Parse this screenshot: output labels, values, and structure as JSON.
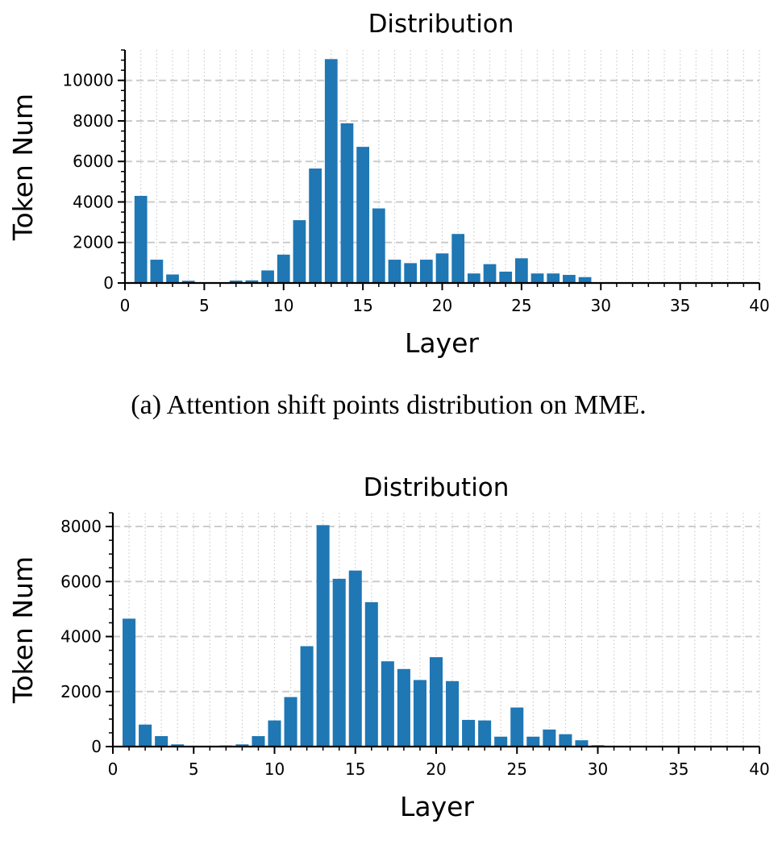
{
  "charts": [
    {
      "title": "Distribution",
      "caption": "(a) Attention shift points distribution on MME."
    },
    {
      "title": "Distribution",
      "caption": ""
    }
  ],
  "chart_data": [
    {
      "type": "bar",
      "title": "Distribution",
      "xlabel": "Layer",
      "ylabel": "Token Num",
      "bar_color": "#1f77b4",
      "grid": true,
      "xlim": [
        0,
        40
      ],
      "ylim": [
        0,
        11500
      ],
      "xticks": [
        0,
        5,
        10,
        15,
        20,
        25,
        30,
        35,
        40
      ],
      "yticks": [
        0,
        2000,
        4000,
        6000,
        8000,
        10000
      ],
      "x": [
        1,
        2,
        3,
        4,
        5,
        6,
        7,
        8,
        9,
        10,
        11,
        12,
        13,
        14,
        15,
        16,
        17,
        18,
        19,
        20,
        21,
        22,
        23,
        24,
        25,
        26,
        27,
        28,
        29,
        30,
        31,
        32,
        33,
        34,
        35,
        36,
        37,
        38,
        39
      ],
      "values": [
        4300,
        1150,
        420,
        110,
        20,
        10,
        120,
        130,
        620,
        1400,
        3100,
        5650,
        11050,
        7880,
        6720,
        3680,
        1150,
        980,
        1150,
        1460,
        2420,
        470,
        930,
        560,
        1220,
        470,
        470,
        400,
        290,
        0,
        0,
        0,
        0,
        0,
        0,
        0,
        0,
        0,
        0
      ]
    },
    {
      "type": "bar",
      "title": "Distribution",
      "xlabel": "Layer",
      "ylabel": "Token Num",
      "bar_color": "#1f77b4",
      "grid": true,
      "xlim": [
        0,
        40
      ],
      "ylim": [
        0,
        8500
      ],
      "xticks": [
        0,
        5,
        10,
        15,
        20,
        25,
        30,
        35,
        40
      ],
      "yticks": [
        0,
        2000,
        4000,
        6000,
        8000
      ],
      "x": [
        1,
        2,
        3,
        4,
        5,
        6,
        7,
        8,
        9,
        10,
        11,
        12,
        13,
        14,
        15,
        16,
        17,
        18,
        19,
        20,
        21,
        22,
        23,
        24,
        25,
        26,
        27,
        28,
        29,
        30,
        31,
        32,
        33,
        34,
        35,
        36,
        37,
        38,
        39
      ],
      "values": [
        4650,
        800,
        380,
        80,
        15,
        10,
        40,
        80,
        380,
        950,
        1800,
        3650,
        8050,
        6100,
        6400,
        5250,
        3100,
        2820,
        2420,
        3250,
        2380,
        970,
        950,
        360,
        1420,
        360,
        620,
        450,
        230,
        50,
        0,
        0,
        0,
        0,
        0,
        0,
        0,
        0,
        0
      ]
    }
  ]
}
